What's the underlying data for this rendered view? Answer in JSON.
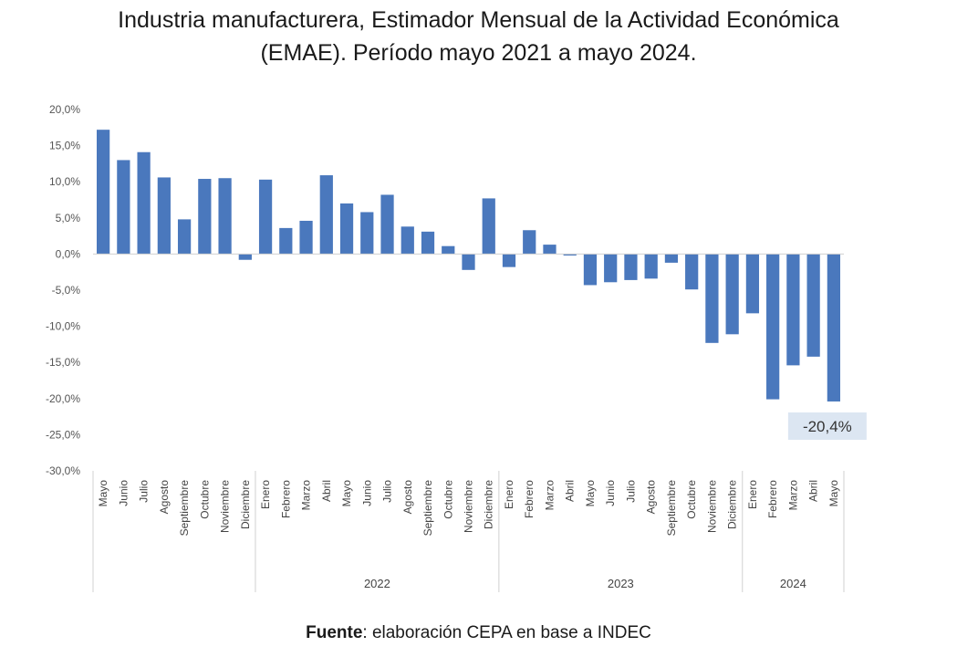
{
  "title_line1": "Industria manufacturera, Estimador Mensual de la Actividad Económica",
  "title_line2": "(EMAE). Período mayo 2021 a mayo 2024.",
  "source_label": "Fuente",
  "source_text": ": elaboración CEPA en base a INDEC",
  "colors": {
    "bar": "#4a78bd",
    "axis": "#d0d0d0",
    "label_bg": "#dce6f2"
  },
  "chart_data": {
    "type": "bar",
    "title": "Industria manufacturera, Estimador Mensual de la Actividad Económica (EMAE). Período mayo 2021 a mayo 2024.",
    "ylim": [
      -30,
      20
    ],
    "yticks": [
      20,
      15,
      10,
      5,
      0,
      -5,
      -10,
      -15,
      -20,
      -25,
      -30
    ],
    "ytick_labels": [
      "20,0%",
      "15,0%",
      "10,0%",
      "5,0%",
      "0,0%",
      "-5,0%",
      "-10,0%",
      "-15,0%",
      "-20,0%",
      "-25,0%",
      "-30,0%"
    ],
    "categories": [
      "Mayo",
      "Junio",
      "Julio",
      "Agosto",
      "Septiembre",
      "Octubre",
      "Noviembre",
      "Diciembre",
      "Enero",
      "Febrero",
      "Marzo",
      "Abril",
      "Mayo",
      "Junio",
      "Julio",
      "Agosto",
      "Septiembre",
      "Octubre",
      "Noviembre",
      "Diciembre",
      "Enero",
      "Febrero",
      "Marzo",
      "Abril",
      "Mayo",
      "Junio",
      "Julio",
      "Agosto",
      "Septiembre",
      "Octubre",
      "Noviembre",
      "Diciembre",
      "Enero",
      "Febrero",
      "Marzo",
      "Abril",
      "Mayo"
    ],
    "values": [
      17.2,
      13.0,
      14.1,
      10.6,
      4.8,
      10.4,
      10.5,
      -0.8,
      10.3,
      3.6,
      4.6,
      10.9,
      7.0,
      5.8,
      8.2,
      3.8,
      3.1,
      1.1,
      -2.2,
      7.7,
      -1.8,
      3.3,
      1.3,
      -0.2,
      -4.3,
      -3.9,
      -3.6,
      -3.4,
      -1.2,
      -4.9,
      -12.3,
      -11.1,
      -8.2,
      -20.1,
      -15.4,
      -14.2,
      -20.4
    ],
    "year_groups": [
      {
        "label": "",
        "start": 0,
        "count": 8
      },
      {
        "label": "2022",
        "start": 8,
        "count": 12
      },
      {
        "label": "2023",
        "start": 20,
        "count": 12
      },
      {
        "label": "2024",
        "start": 32,
        "count": 5
      }
    ],
    "annotation": {
      "index": 36,
      "text": "-20,4%"
    }
  }
}
